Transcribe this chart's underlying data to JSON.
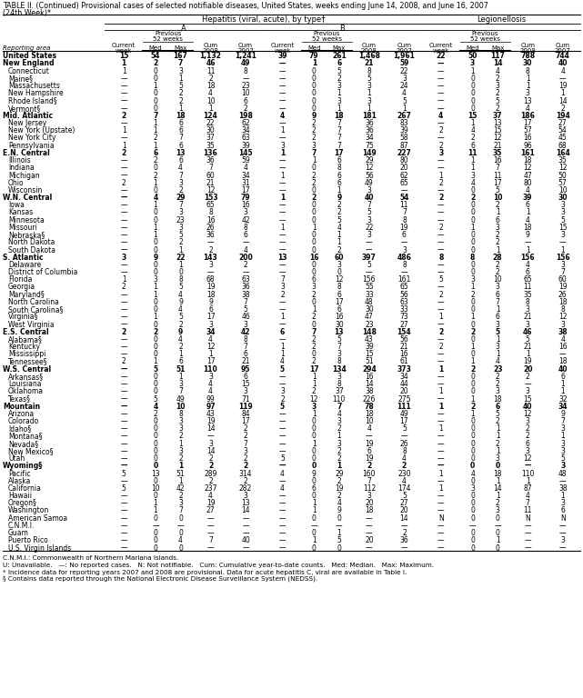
{
  "title_line1": "TABLE II. (Continued) Provisional cases of selected notifiable diseases, United States, weeks ending June 14, 2008, and June 16, 2007",
  "title_line2": "(24th Week)*",
  "rows": [
    [
      "United States",
      "15",
      "54",
      "167",
      "1,132",
      "1,241",
      "39",
      "79",
      "261",
      "1,468",
      "1,961",
      "22",
      "50",
      "117",
      "788",
      "744"
    ],
    [
      "New England",
      "1",
      "2",
      "7",
      "46",
      "49",
      "—",
      "1",
      "6",
      "21",
      "59",
      "—",
      "3",
      "14",
      "30",
      "40"
    ],
    [
      "Connecticut",
      "1",
      "0",
      "3",
      "11",
      "8",
      "—",
      "0",
      "5",
      "8",
      "22",
      "—",
      "1",
      "4",
      "8",
      "4"
    ],
    [
      "Maine§",
      "—",
      "0",
      "1",
      "2",
      "—",
      "—",
      "0",
      "2",
      "5",
      "3",
      "—",
      "0",
      "2",
      "1",
      "—"
    ],
    [
      "Massachusetts",
      "—",
      "1",
      "5",
      "18",
      "23",
      "—",
      "0",
      "3",
      "3",
      "24",
      "—",
      "0",
      "3",
      "1",
      "19"
    ],
    [
      "New Hampshire",
      "—",
      "0",
      "2",
      "4",
      "10",
      "—",
      "0",
      "1",
      "1",
      "4",
      "—",
      "0",
      "2",
      "3",
      "1"
    ],
    [
      "Rhode Island§",
      "—",
      "0",
      "2",
      "10",
      "6",
      "—",
      "0",
      "3",
      "3",
      "5",
      "—",
      "0",
      "5",
      "13",
      "14"
    ],
    [
      "Vermont§",
      "—",
      "0",
      "1",
      "1",
      "2",
      "—",
      "0",
      "1",
      "1",
      "1",
      "—",
      "0",
      "2",
      "4",
      "2"
    ],
    [
      "Mid. Atlantic",
      "2",
      "7",
      "18",
      "124",
      "198",
      "4",
      "9",
      "18",
      "181",
      "267",
      "4",
      "15",
      "37",
      "186",
      "194"
    ],
    [
      "New Jersey",
      "—",
      "1",
      "6",
      "22",
      "62",
      "—",
      "2",
      "7",
      "36",
      "83",
      "—",
      "1",
      "13",
      "17",
      "27"
    ],
    [
      "New York (Upstate)",
      "1",
      "1",
      "6",
      "30",
      "34",
      "1",
      "2",
      "7",
      "36",
      "39",
      "2",
      "4",
      "15",
      "57",
      "54"
    ],
    [
      "New York City",
      "—",
      "2",
      "7",
      "37",
      "63",
      "—",
      "2",
      "7",
      "34",
      "58",
      "—",
      "2",
      "12",
      "16",
      "45"
    ],
    [
      "Pennsylvania",
      "1",
      "1",
      "6",
      "35",
      "39",
      "3",
      "3",
      "7",
      "75",
      "87",
      "2",
      "6",
      "21",
      "96",
      "68"
    ],
    [
      "E.N. Central",
      "2",
      "6",
      "13",
      "136",
      "145",
      "1",
      "7",
      "17",
      "149",
      "227",
      "3",
      "11",
      "35",
      "161",
      "164"
    ],
    [
      "Illinois",
      "—",
      "2",
      "6",
      "36",
      "59",
      "—",
      "1",
      "6",
      "29",
      "80",
      "—",
      "1",
      "16",
      "18",
      "35"
    ],
    [
      "Indiana",
      "—",
      "0",
      "4",
      "7",
      "4",
      "—",
      "0",
      "8",
      "12",
      "20",
      "—",
      "1",
      "7",
      "12",
      "12"
    ],
    [
      "Michigan",
      "—",
      "2",
      "7",
      "60",
      "34",
      "1",
      "2",
      "6",
      "56",
      "62",
      "1",
      "3",
      "11",
      "47",
      "50"
    ],
    [
      "Ohio",
      "2",
      "1",
      "3",
      "21",
      "31",
      "—",
      "2",
      "6",
      "49",
      "65",
      "2",
      "4",
      "17",
      "80",
      "57"
    ],
    [
      "Wisconsin",
      "—",
      "0",
      "2",
      "12",
      "17",
      "—",
      "0",
      "1",
      "3",
      "—",
      "—",
      "0",
      "5",
      "4",
      "10"
    ],
    [
      "W.N. Central",
      "—",
      "4",
      "29",
      "153",
      "79",
      "1",
      "2",
      "9",
      "40",
      "54",
      "2",
      "2",
      "10",
      "39",
      "30"
    ],
    [
      "Iowa",
      "—",
      "1",
      "7",
      "65",
      "16",
      "—",
      "0",
      "2",
      "7",
      "11",
      "—",
      "0",
      "2",
      "6",
      "3"
    ],
    [
      "Kansas",
      "—",
      "0",
      "3",
      "8",
      "3",
      "—",
      "0",
      "2",
      "5",
      "7",
      "—",
      "0",
      "1",
      "1",
      "3"
    ],
    [
      "Minnesota",
      "—",
      "0",
      "23",
      "16",
      "42",
      "—",
      "0",
      "5",
      "3",
      "8",
      "—",
      "0",
      "6",
      "4",
      "5"
    ],
    [
      "Missouri",
      "—",
      "1",
      "3",
      "26",
      "8",
      "1",
      "1",
      "4",
      "22",
      "19",
      "2",
      "1",
      "3",
      "18",
      "15"
    ],
    [
      "Nebraska§",
      "—",
      "1",
      "5",
      "36",
      "6",
      "—",
      "0",
      "1",
      "3",
      "6",
      "—",
      "0",
      "2",
      "9",
      "3"
    ],
    [
      "North Dakota",
      "—",
      "0",
      "2",
      "—",
      "—",
      "—",
      "0",
      "1",
      "—",
      "—",
      "—",
      "0",
      "2",
      "—",
      "—"
    ],
    [
      "South Dakota",
      "—",
      "0",
      "1",
      "2",
      "4",
      "—",
      "0",
      "2",
      "—",
      "3",
      "—",
      "0",
      "1",
      "1",
      "1"
    ],
    [
      "S. Atlantic",
      "3",
      "9",
      "22",
      "143",
      "200",
      "13",
      "16",
      "60",
      "397",
      "486",
      "8",
      "8",
      "28",
      "156",
      "156"
    ],
    [
      "Delaware",
      "—",
      "0",
      "1",
      "3",
      "2",
      "—",
      "0",
      "3",
      "5",
      "8",
      "—",
      "0",
      "2",
      "4",
      "3"
    ],
    [
      "District of Columbia",
      "—",
      "0",
      "0",
      "—",
      "—",
      "—",
      "0",
      "0",
      "—",
      "—",
      "—",
      "0",
      "2",
      "6",
      "7"
    ],
    [
      "Florida",
      "1",
      "3",
      "8",
      "68",
      "63",
      "7",
      "6",
      "12",
      "156",
      "161",
      "5",
      "3",
      "10",
      "65",
      "60"
    ],
    [
      "Georgia",
      "2",
      "1",
      "5",
      "19",
      "36",
      "3",
      "3",
      "8",
      "55",
      "65",
      "—",
      "1",
      "3",
      "11",
      "19"
    ],
    [
      "Maryland§",
      "—",
      "1",
      "4",
      "18",
      "38",
      "2",
      "2",
      "6",
      "33",
      "56",
      "2",
      "2",
      "6",
      "35",
      "26"
    ],
    [
      "North Carolina",
      "—",
      "0",
      "9",
      "9",
      "7",
      "—",
      "0",
      "17",
      "48",
      "63",
      "—",
      "0",
      "7",
      "8",
      "18"
    ],
    [
      "South Carolina§",
      "—",
      "0",
      "4",
      "6",
      "5",
      "—",
      "1",
      "6",
      "30",
      "33",
      "—",
      "0",
      "1",
      "3",
      "8"
    ],
    [
      "Virginia§",
      "—",
      "1",
      "5",
      "17",
      "46",
      "1",
      "2",
      "16",
      "47",
      "73",
      "1",
      "1",
      "6",
      "21",
      "12"
    ],
    [
      "West Virginia",
      "—",
      "0",
      "2",
      "3",
      "3",
      "—",
      "0",
      "30",
      "23",
      "27",
      "—",
      "0",
      "3",
      "3",
      "3"
    ],
    [
      "E.S. Central",
      "2",
      "2",
      "9",
      "34",
      "42",
      "6",
      "7",
      "13",
      "148",
      "154",
      "2",
      "2",
      "5",
      "46",
      "38"
    ],
    [
      "Alabama§",
      "—",
      "0",
      "4",
      "4",
      "8",
      "—",
      "2",
      "5",
      "43",
      "56",
      "—",
      "0",
      "1",
      "5",
      "4"
    ],
    [
      "Kentucky",
      "—",
      "0",
      "2",
      "12",
      "7",
      "1",
      "2",
      "7",
      "39",
      "21",
      "2",
      "1",
      "3",
      "21",
      "16"
    ],
    [
      "Mississippi",
      "—",
      "0",
      "1",
      "1",
      "6",
      "1",
      "0",
      "3",
      "15",
      "16",
      "—",
      "0",
      "1",
      "1",
      "—"
    ],
    [
      "Tennessee§",
      "2",
      "1",
      "6",
      "17",
      "21",
      "4",
      "2",
      "8",
      "51",
      "61",
      "—",
      "1",
      "4",
      "19",
      "18"
    ],
    [
      "W.S. Central",
      "—",
      "5",
      "51",
      "110",
      "95",
      "5",
      "17",
      "134",
      "294",
      "373",
      "1",
      "2",
      "23",
      "20",
      "40"
    ],
    [
      "Arkansas§",
      "—",
      "0",
      "1",
      "3",
      "6",
      "—",
      "1",
      "3",
      "16",
      "34",
      "—",
      "0",
      "2",
      "2",
      "6"
    ],
    [
      "Louisiana",
      "—",
      "0",
      "3",
      "4",
      "15",
      "—",
      "1",
      "8",
      "14",
      "44",
      "—",
      "0",
      "2",
      "—",
      "1"
    ],
    [
      "Oklahoma",
      "—",
      "0",
      "7",
      "4",
      "3",
      "3",
      "2",
      "37",
      "38",
      "20",
      "1",
      "0",
      "3",
      "3",
      "1"
    ],
    [
      "Texas§",
      "—",
      "5",
      "49",
      "99",
      "71",
      "2",
      "12",
      "110",
      "226",
      "275",
      "—",
      "1",
      "18",
      "15",
      "32"
    ],
    [
      "Mountain",
      "—",
      "4",
      "10",
      "97",
      "119",
      "5",
      "3",
      "7",
      "78",
      "111",
      "1",
      "2",
      "6",
      "40",
      "34"
    ],
    [
      "Arizona",
      "—",
      "2",
      "8",
      "43",
      "84",
      "—",
      "1",
      "4",
      "18",
      "49",
      "—",
      "1",
      "5",
      "12",
      "9"
    ],
    [
      "Colorado",
      "—",
      "0",
      "3",
      "19",
      "17",
      "—",
      "0",
      "3",
      "10",
      "17",
      "—",
      "0",
      "2",
      "3",
      "7"
    ],
    [
      "Idaho§",
      "—",
      "0",
      "3",
      "14",
      "2",
      "—",
      "0",
      "2",
      "4",
      "5",
      "1",
      "0",
      "1",
      "2",
      "3"
    ],
    [
      "Montana§",
      "—",
      "0",
      "2",
      "—",
      "2",
      "—",
      "0",
      "1",
      "—",
      "—",
      "—",
      "0",
      "1",
      "2",
      "1"
    ],
    [
      "Nevada§",
      "—",
      "0",
      "1",
      "3",
      "7",
      "—",
      "1",
      "3",
      "19",
      "26",
      "—",
      "0",
      "2",
      "6",
      "3"
    ],
    [
      "New Mexico§",
      "—",
      "0",
      "3",
      "14",
      "3",
      "—",
      "0",
      "2",
      "6",
      "8",
      "—",
      "0",
      "1",
      "3",
      "3"
    ],
    [
      "Utah",
      "—",
      "0",
      "2",
      "2",
      "2",
      "5",
      "0",
      "2",
      "19",
      "4",
      "—",
      "0",
      "3",
      "12",
      "5"
    ],
    [
      "Wyoming§",
      "—",
      "0",
      "1",
      "2",
      "2",
      "—",
      "0",
      "1",
      "2",
      "2",
      "—",
      "0",
      "0",
      "—",
      "3"
    ],
    [
      "Pacific",
      "5",
      "13",
      "51",
      "289",
      "314",
      "4",
      "9",
      "29",
      "160",
      "230",
      "1",
      "4",
      "18",
      "110",
      "48"
    ],
    [
      "Alaska",
      "—",
      "0",
      "1",
      "2",
      "2",
      "—",
      "0",
      "2",
      "7",
      "4",
      "—",
      "0",
      "1",
      "1",
      "—"
    ],
    [
      "California",
      "5",
      "10",
      "42",
      "237",
      "282",
      "4",
      "6",
      "19",
      "112",
      "174",
      "1",
      "3",
      "14",
      "87",
      "38"
    ],
    [
      "Hawaii",
      "—",
      "0",
      "2",
      "4",
      "3",
      "—",
      "0",
      "2",
      "3",
      "5",
      "—",
      "0",
      "1",
      "4",
      "1"
    ],
    [
      "Oregon§",
      "—",
      "1",
      "3",
      "19",
      "13",
      "—",
      "1",
      "4",
      "20",
      "27",
      "—",
      "0",
      "2",
      "7",
      "3"
    ],
    [
      "Washington",
      "—",
      "1",
      "7",
      "27",
      "14",
      "—",
      "1",
      "9",
      "18",
      "20",
      "—",
      "0",
      "3",
      "11",
      "6"
    ],
    [
      "American Samoa",
      "—",
      "0",
      "0",
      "—",
      "—",
      "—",
      "0",
      "0",
      "—",
      "14",
      "N",
      "0",
      "0",
      "N",
      "N"
    ],
    [
      "C.N.M.I.",
      "—",
      "—",
      "—",
      "—",
      "—",
      "—",
      "—",
      "—",
      "—",
      "—",
      "—",
      "—",
      "—",
      "—",
      "—"
    ],
    [
      "Guam",
      "—",
      "0",
      "0",
      "—",
      "—",
      "—",
      "0",
      "1",
      "—",
      "2",
      "—",
      "0",
      "0",
      "—",
      "—"
    ],
    [
      "Puerto Rico",
      "—",
      "0",
      "4",
      "7",
      "40",
      "—",
      "1",
      "5",
      "20",
      "36",
      "—",
      "0",
      "1",
      "—",
      "3"
    ],
    [
      "U.S. Virgin Islands",
      "—",
      "0",
      "0",
      "—",
      "—",
      "—",
      "0",
      "0",
      "—",
      "—",
      "—",
      "0",
      "0",
      "—",
      "—"
    ]
  ],
  "section_rows": [
    0,
    1,
    8,
    13,
    19,
    27,
    37,
    42,
    47,
    55
  ],
  "footer_lines": [
    "C.N.M.I.: Commonwealth of Northern Mariana Islands.",
    "U: Unavailable.   —: No reported cases.   N: Not notifiable.   Cum: Cumulative year-to-date counts.   Med: Median.   Max: Maximum.",
    "* Incidence data for reporting years 2007 and 2008 are provisional. Data for acute hepatitis C, viral are available in Table I.  § Contains data reported through the National Electronic Disease Surveillance System (NEDSS)."
  ]
}
